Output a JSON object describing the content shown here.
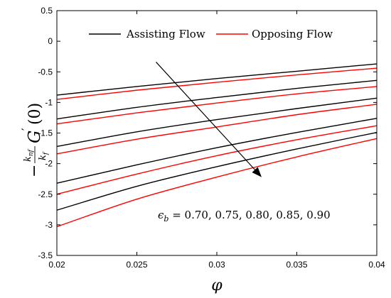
{
  "chart_data": {
    "type": "line",
    "title": "",
    "xlabel": "φ",
    "ylabel": {
      "prefix": "−",
      "frac_num": "k",
      "frac_num_sub": "nf",
      "frac_den": "k",
      "frac_den_sub": "f",
      "func": "G",
      "prime": "′",
      "arg": "(0)"
    },
    "xlim": [
      0.02,
      0.04
    ],
    "ylim": [
      -3.5,
      0.5
    ],
    "x_ticks": [
      "0.02",
      "0.025",
      "0.03",
      "0.035",
      "0.04"
    ],
    "y_ticks": [
      "0.5",
      "0",
      "-0.5",
      "-1",
      "-1.5",
      "-2",
      "-2.5",
      "-3",
      "-3.5"
    ],
    "grid": false,
    "legend_position": "top",
    "legend": [
      {
        "label": "Assisting Flow",
        "color": "#000000"
      },
      {
        "label": "Opposing Flow",
        "color": "#ff0000"
      }
    ],
    "x": [
      0.02,
      0.025,
      0.03,
      0.035,
      0.04
    ],
    "series": [
      {
        "group": "Assisting Flow",
        "color": "#000000",
        "values": [
          -0.88,
          -0.74,
          -0.61,
          -0.49,
          -0.37
        ]
      },
      {
        "group": "Opposing Flow",
        "color": "#ff0000",
        "values": [
          -0.95,
          -0.8,
          -0.67,
          -0.55,
          -0.44
        ]
      },
      {
        "group": "Assisting Flow",
        "color": "#000000",
        "values": [
          -1.27,
          -1.08,
          -0.92,
          -0.77,
          -0.64
        ]
      },
      {
        "group": "Opposing Flow",
        "color": "#ff0000",
        "values": [
          -1.35,
          -1.17,
          -1.01,
          -0.86,
          -0.74
        ]
      },
      {
        "group": "Assisting Flow",
        "color": "#000000",
        "values": [
          -1.72,
          -1.48,
          -1.28,
          -1.1,
          -0.93
        ]
      },
      {
        "group": "Opposing Flow",
        "color": "#ff0000",
        "values": [
          -1.84,
          -1.6,
          -1.4,
          -1.2,
          -1.03
        ]
      },
      {
        "group": "Assisting Flow",
        "color": "#000000",
        "values": [
          -2.32,
          -2.02,
          -1.74,
          -1.49,
          -1.26
        ]
      },
      {
        "group": "Opposing Flow",
        "color": "#ff0000",
        "values": [
          -2.5,
          -2.17,
          -1.87,
          -1.61,
          -1.38
        ]
      },
      {
        "group": "Assisting Flow",
        "color": "#000000",
        "values": [
          -2.76,
          -2.37,
          -2.05,
          -1.76,
          -1.49
        ]
      },
      {
        "group": "Opposing Flow",
        "color": "#ff0000",
        "values": [
          -3.03,
          -2.58,
          -2.22,
          -1.89,
          -1.59
        ]
      }
    ],
    "annotation": {
      "text": "ϵ_b = 0.70, 0.75, 0.80, 0.85, 0.90",
      "symbol": "ϵ",
      "symbol_sub": "b",
      "values_text": " = 0.70, 0.75, 0.80, 0.85, 0.90",
      "arrow_from": [
        0.0262,
        -0.34
      ],
      "arrow_to": [
        0.0328,
        -2.22
      ]
    }
  }
}
